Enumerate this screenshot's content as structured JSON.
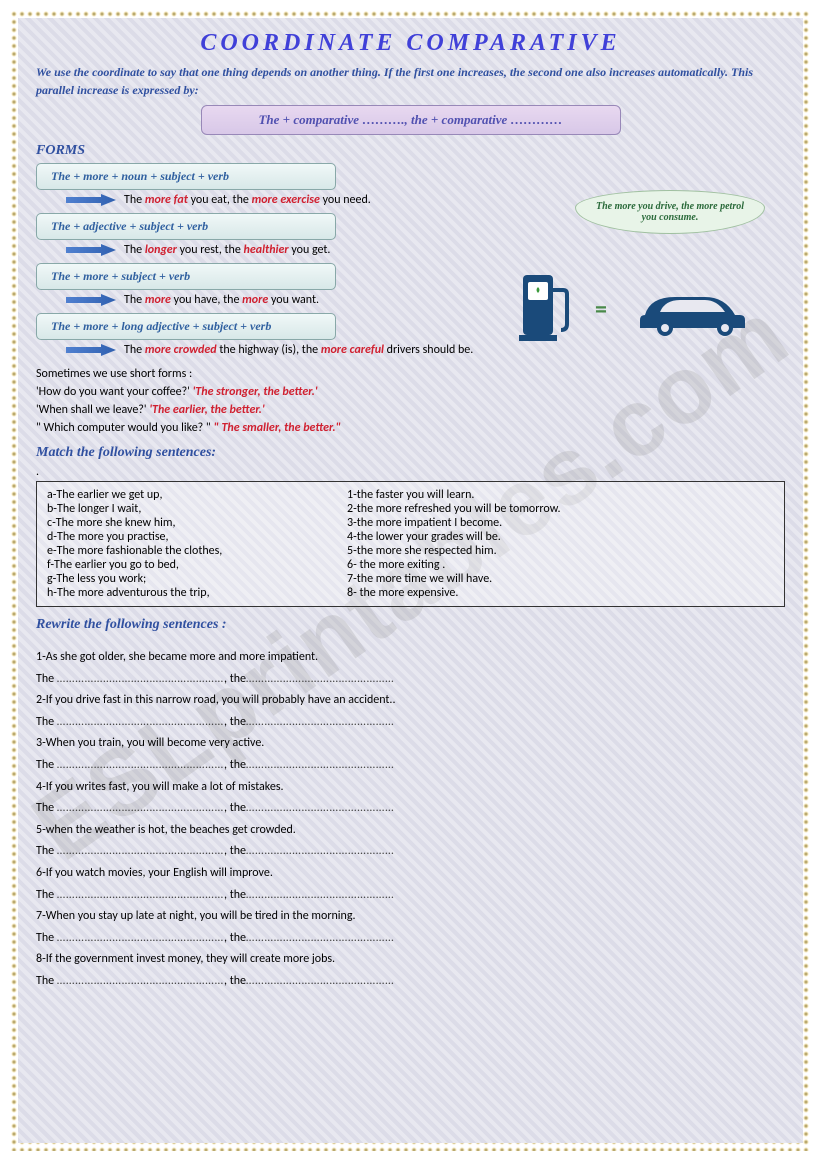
{
  "title": "COORDINATE COMPARATIVE",
  "intro": "We use the coordinate to say that one thing depends on another thing. If the first one increases, the second one also increases automatically. This parallel increase is expressed by:",
  "formula": "The + comparative ………., the + comparative …………",
  "forms_heading": "FORMS",
  "bubble_text": "The more you drive, the more petrol you consume.",
  "forms": [
    {
      "box": "The + more + noun + subject + verb",
      "ex_pre": "The ",
      "ex_r1": "more fat",
      "ex_mid": " you eat, the ",
      "ex_r2": "more exercise",
      "ex_post": " you need."
    },
    {
      "box": "The + adjective + subject + verb",
      "ex_pre": "The ",
      "ex_r1": "longer",
      "ex_mid": " you rest, the ",
      "ex_r2": "healthier",
      "ex_post": " you get."
    },
    {
      "box": "The + more + subject + verb",
      "ex_pre": "The ",
      "ex_r1": "more",
      "ex_mid": " you have, the ",
      "ex_r2": "more",
      "ex_post": " you want."
    },
    {
      "box": "The + more + long adjective + subject + verb",
      "ex_pre": "The ",
      "ex_r1": "more crowded",
      "ex_mid": " the highway (is), the ",
      "ex_r2": "more careful",
      "ex_post": "  drivers should be."
    }
  ],
  "short_intro": "Sometimes we use short forms :",
  "shorts": [
    {
      "q": "'How do you want your coffee?'    ",
      "a": "'The stronger, the better.'"
    },
    {
      "q": "'When shall we leave?'       ",
      "a": "'The earlier, the better.'"
    },
    {
      "q": "\" Which computer would you like? \"      ",
      "a": "\" The smaller, the better.\""
    }
  ],
  "match_heading": "Match the following sentences:",
  "match_left": [
    "a-The earlier we get up,",
    "b-The longer I wait,",
    "c-The more she knew him,",
    "d-The more you practise,",
    "e-The more fashionable the clothes,",
    "f-The earlier  you go to bed,",
    "g-The less you work;",
    "h-The more adventurous the trip,"
  ],
  "match_right": [
    "1-the faster you will learn.",
    "2-the more refreshed you will be tomorrow.",
    "3-the more impatient I become.",
    "4-the lower your grades will be.",
    "5-the more she respected him.",
    "6- the more exiting .",
    "7-the more time we will have.",
    "8- the more expensive."
  ],
  "rewrite_heading": "Rewrite the following sentences :",
  "rewrites": [
    "1-As she got older, she became more and more impatient.",
    "2-If you drive fast in this narrow road,  you will probably have an accident..",
    "3-When you train, you will become very active.",
    "4-If  you  writes fast, you will make a lot of mistakes.",
    "5-when the weather is hot, the beaches get crowded.",
    "6-If you watch movies, your English will improve.",
    "7-When you stay up late at night, you will be tired in the morning.",
    "8-If the government invest money, they will create more jobs."
  ],
  "blank_the": "The ",
  "blank_dots1": "………………………………………………",
  "blank_sep": ", the",
  "blank_dots2": "…………………………………………",
  "colors": {
    "accent": "#3050a0",
    "red": "#d02030",
    "box_border": "#88a8a8"
  }
}
